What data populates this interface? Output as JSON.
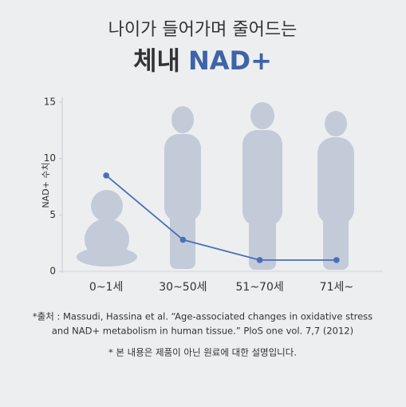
{
  "chart_data": {
    "type": "line",
    "title": "나이가 들어가며 줄어드는",
    "subtitle_parts": [
      "체내",
      "NAD+"
    ],
    "y_label": "NAD+ 수치",
    "categories": [
      "0~1세",
      "30~50세",
      "51~70세",
      "71세~"
    ],
    "series": [
      {
        "name": "NAD+ 수치",
        "color": "#4a6fb8",
        "values": [
          8.5,
          2.8,
          1.0,
          1.0
        ]
      }
    ],
    "ylim": [
      0,
      15
    ],
    "yticks": [
      0,
      5,
      10,
      15
    ],
    "source_lines": [
      "*출처 : Massudi, Hassina et al. “Age-associated changes in oxidative stress",
      "and NAD+ metabolism in human tissue.” PloS one vol. 7,7 (2012)"
    ],
    "note": "* 본 내용은 제품이 아닌 원료에 대한 설명입니다."
  }
}
